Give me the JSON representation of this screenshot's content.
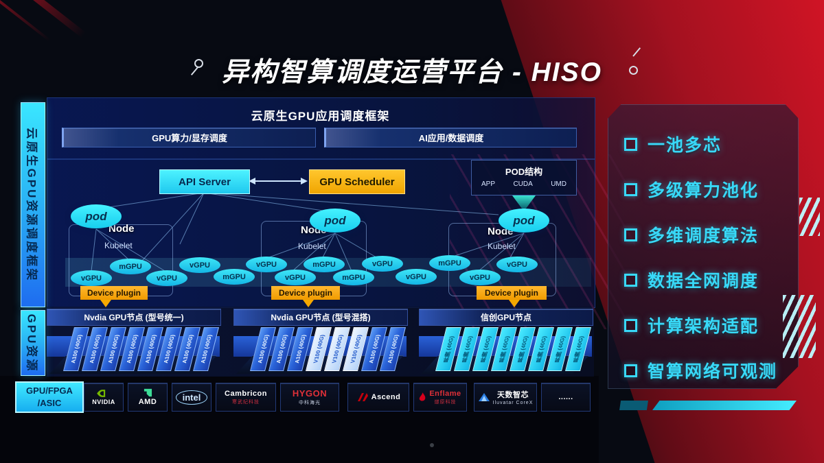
{
  "title": "异构智算调度运营平台 - HISO",
  "sidebar": {
    "top_label": "云原生GPU资源调度框架",
    "bottom_label": "GPU资源"
  },
  "app_frame": {
    "title": "云原生GPU应用调度框架",
    "bars": [
      "GPU算力/显存调度",
      "AI应用/数据调度"
    ]
  },
  "control": {
    "api_server": "API Server",
    "gpu_scheduler": "GPU Scheduler"
  },
  "pod_struct": {
    "title": "POD结构",
    "items": [
      "APP",
      "CUDA",
      "UMD"
    ]
  },
  "nodes": [
    {
      "name": "Node",
      "agent": "Kubelet",
      "pod": "pod",
      "plugin": "Device plugin"
    },
    {
      "name": "Node",
      "agent": "Kubelet",
      "pod": "pod",
      "plugin": "Device plugin"
    },
    {
      "name": "Node",
      "agent": "Kubelet",
      "pod": "pod",
      "plugin": "Device plugin"
    }
  ],
  "gpu_ellipses": [
    "vGPU",
    "mGPU",
    "vGPU",
    "vGPU",
    "mGPU",
    "vGPU",
    "vGPU",
    "mGPU",
    "mGPU",
    "vGPU",
    "vGPU",
    "mGPU",
    "vGPU",
    "vGPU"
  ],
  "gpu_groups": [
    {
      "header": "Nvdia GPU节点 (型号统一)",
      "cards": [
        "A100 (40G)",
        "A100 (40G)",
        "A100 (40G)",
        "A100 (40G)",
        "A100 (40G)",
        "A100 (40G)",
        "A100 (40G)",
        "A100 (40G)"
      ]
    },
    {
      "header": "Nvdia GPU节点 (型号混搭)",
      "cards": [
        "A100 (40G)",
        "A100 (40G)",
        "A100 (40G)",
        "V100 (40G)",
        "V100 (40G)",
        "V100 (40G)",
        "A100 (40G)",
        "A100 (40G)"
      ]
    },
    {
      "header": "信创GPU节点",
      "cards": [
        "昇腾 (40G)",
        "昇腾 (40G)",
        "昇腾 (40G)",
        "昇腾 (40G)",
        "昇腾 (40G)",
        "昇腾 (40G)",
        "昇腾 (40G)",
        "昇腾 (40G)"
      ]
    }
  ],
  "hardware": {
    "label_line1": "GPU/FPGA",
    "label_line2": "/ASIC",
    "vendors": [
      {
        "name": "NVIDIA"
      },
      {
        "name": "AMD"
      },
      {
        "name": "intel"
      },
      {
        "name": "Cambricon",
        "sub": "寒武纪科技"
      },
      {
        "name": "HYGON",
        "sub": "中科海光"
      },
      {
        "name": "Ascend"
      },
      {
        "name": "Enflame",
        "sub": "燧原科技"
      },
      {
        "name": "天数智芯",
        "sub": "Iluvatar CoreX"
      },
      {
        "name": "......"
      }
    ]
  },
  "features": [
    "一池多芯",
    "多级算力池化",
    "多维调度算法",
    "数据全网调度",
    "计算架构适配",
    "智算网络可观测"
  ],
  "colors": {
    "accent_cyan": "#38d9f8",
    "accent_orange": "#f0a500",
    "card_blue": "#2a63d8",
    "panel_red": "#b01020"
  }
}
